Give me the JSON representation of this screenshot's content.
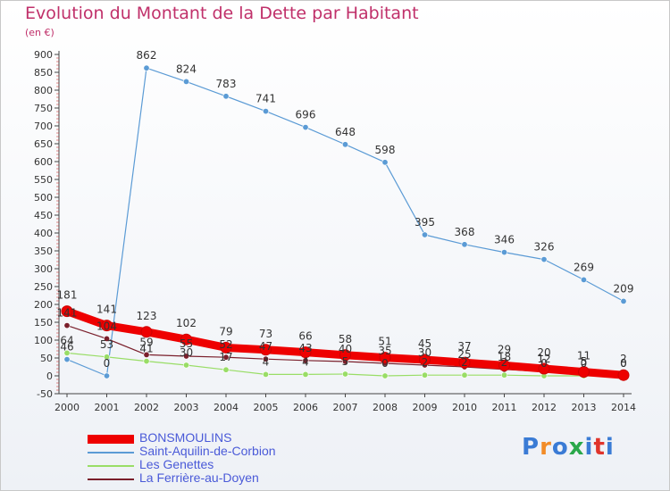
{
  "header": {
    "title": "Evolution du Montant de la Dette par Habitant",
    "unit": "(en €)"
  },
  "brand": {
    "text": "Proxiti",
    "colors": [
      "#3a7bd5",
      "#f28c28",
      "#3a7bd5",
      "#2aa84a",
      "#3a7bd5",
      "#e0342b",
      "#3a7bd5"
    ]
  },
  "chart_data": {
    "type": "line",
    "x": [
      "2000",
      "2001",
      "2002",
      "2003",
      "2004",
      "2005",
      "2006",
      "2007",
      "2008",
      "2009",
      "2010",
      "2011",
      "2012",
      "2013",
      "2014"
    ],
    "ylim": [
      -50,
      900
    ],
    "yticks": [
      -50,
      0,
      50,
      100,
      150,
      200,
      250,
      300,
      350,
      400,
      450,
      500,
      550,
      600,
      650,
      700,
      750,
      800,
      850,
      900
    ],
    "grid": false,
    "legend_position": "bottom-left",
    "series": [
      {
        "name": "BONSMOULINS",
        "color": "#ee0000",
        "values": [
          181,
          141,
          123,
          102,
          79,
          73,
          66,
          58,
          51,
          45,
          37,
          29,
          20,
          11,
          2
        ],
        "labels": [
          "181",
          "141",
          "123",
          "102",
          "79",
          "73",
          "66",
          "58",
          "51",
          "45",
          "37",
          "29",
          "20",
          "11",
          "2"
        ]
      },
      {
        "name": "Saint-Aquilin-de-Corbion",
        "color": "#5b9bd5",
        "values": [
          46,
          0,
          862,
          824,
          783,
          741,
          696,
          648,
          598,
          395,
          368,
          346,
          326,
          269,
          209
        ],
        "labels": [
          "46",
          "0",
          "862",
          "824",
          "783",
          "741",
          "696",
          "648",
          "598",
          "395",
          "368",
          "346",
          "326",
          "269",
          "209"
        ]
      },
      {
        "name": "Les Genettes",
        "color": "#99dd66",
        "values": [
          64,
          53,
          41,
          30,
          17,
          4,
          4,
          5,
          0,
          2,
          2,
          2,
          0,
          0,
          0
        ],
        "labels": [
          "64",
          "53",
          "41",
          "30",
          "17",
          "4",
          "4",
          "5",
          "0",
          "2",
          "2",
          "2",
          "0",
          "0",
          "0"
        ]
      },
      {
        "name": "La Ferrière-au-Doyen",
        "color": "#7a1f2b",
        "values": [
          141,
          104,
          59,
          55,
          52,
          47,
          43,
          40,
          35,
          30,
          25,
          18,
          12,
          5,
          0
        ],
        "labels": [
          "141",
          "104",
          "59",
          "55",
          "52",
          "47",
          "43",
          "40",
          "35",
          "30",
          "25",
          "18",
          "12",
          "5",
          "0"
        ]
      }
    ]
  }
}
